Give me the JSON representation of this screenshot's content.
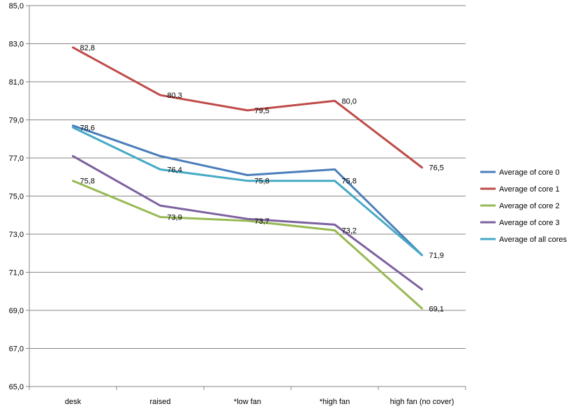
{
  "chart_data": {
    "type": "line",
    "categories": [
      "desk",
      "raised",
      "*low fan",
      "*high fan",
      "high fan (no cover)"
    ],
    "ylim": [
      65.0,
      85.0
    ],
    "yticks": [
      "65,0",
      "67,0",
      "69,0",
      "71,0",
      "73,0",
      "75,0",
      "77,0",
      "79,0",
      "81,0",
      "83,0",
      "85,0"
    ],
    "grid": true,
    "legend_position": "right",
    "series": [
      {
        "name": "Average of core 0",
        "color": "#4A7EBB",
        "values": [
          78.7,
          77.1,
          76.1,
          76.4,
          71.9
        ],
        "labels": [
          "",
          "",
          "",
          "",
          ""
        ]
      },
      {
        "name": "Average of core 1",
        "color": "#BE4B48",
        "values": [
          82.8,
          80.3,
          79.5,
          80.0,
          76.5
        ],
        "labels": [
          "82,8",
          "80,3",
          "79,5",
          "80,0",
          "76,5"
        ]
      },
      {
        "name": "Average of core 2",
        "color": "#98B954",
        "values": [
          75.8,
          73.9,
          73.7,
          73.2,
          69.1
        ],
        "labels": [
          "75,8",
          "73,9",
          "73,7",
          "73,2",
          "69,1"
        ]
      },
      {
        "name": "Average of core 3",
        "color": "#7D60A0",
        "values": [
          77.1,
          74.5,
          73.8,
          73.5,
          70.1
        ],
        "labels": [
          "",
          "",
          "",
          "",
          ""
        ]
      },
      {
        "name": "Average of all cores",
        "color": "#46AAC5",
        "values": [
          78.6,
          76.4,
          75.8,
          75.8,
          71.9
        ],
        "labels": [
          "78,6",
          "76,4",
          "75,8",
          "75,8",
          "71,9"
        ]
      }
    ]
  }
}
